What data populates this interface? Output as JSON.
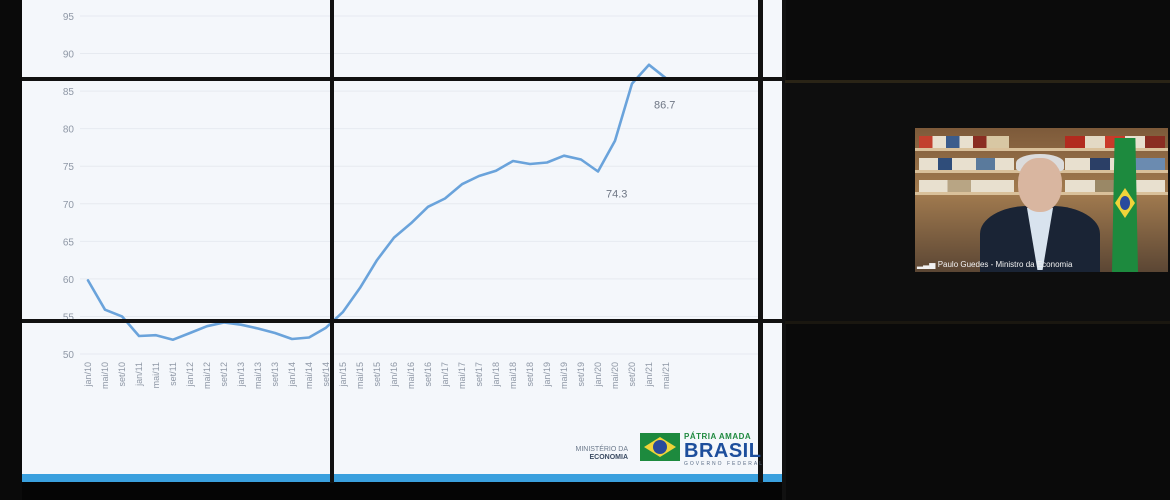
{
  "chart_data": {
    "type": "line",
    "title": "",
    "xlabel": "",
    "ylabel": "",
    "ylim": [
      50,
      95
    ],
    "yticks": [
      50,
      55,
      60,
      65,
      70,
      75,
      80,
      85,
      90,
      95
    ],
    "xticks": [
      "jan/10",
      "mai/10",
      "set/10",
      "jan/11",
      "mai/11",
      "set/11",
      "jan/12",
      "mai/12",
      "set/12",
      "jan/13",
      "mai/13",
      "set/13",
      "jan/14",
      "mai/14",
      "set/14",
      "jan/15",
      "mai/15",
      "set/15",
      "jan/16",
      "mai/16",
      "set/16",
      "jan/17",
      "mai/17",
      "set/17",
      "jan/18",
      "mai/18",
      "set/18",
      "jan/19",
      "mai/19",
      "set/19",
      "jan/20",
      "mai/20",
      "set/20",
      "jan/21",
      "mai/21"
    ],
    "line_color": "#6aa3db",
    "series": [
      {
        "x": [
          "jan/10",
          "mai/10",
          "set/10",
          "jan/11",
          "mai/11",
          "set/11",
          "jan/12",
          "mai/12",
          "set/12",
          "jan/13",
          "mai/13",
          "set/13",
          "jan/14",
          "mai/14",
          "set/14",
          "jan/15",
          "mai/15",
          "set/15",
          "jan/16",
          "mai/16",
          "set/16",
          "jan/17",
          "mai/17",
          "set/17",
          "jan/18",
          "mai/18",
          "set/18",
          "jan/19",
          "mai/19",
          "set/19",
          "jan/20",
          "mai/20",
          "set/20",
          "jan/21",
          "mai/21"
        ],
        "values": [
          59.8,
          55.9,
          55.0,
          52.4,
          52.5,
          51.9,
          52.8,
          53.7,
          54.2,
          53.9,
          53.4,
          52.8,
          52.0,
          52.2,
          53.5,
          55.6,
          58.8,
          62.5,
          65.5,
          67.4,
          69.6,
          70.7,
          72.6,
          73.7,
          74.4,
          75.7,
          75.3,
          75.5,
          76.4,
          75.9,
          74.3,
          78.4,
          86.0,
          88.5,
          86.7
        ]
      }
    ],
    "annotations": [
      {
        "x": "jan/20",
        "y": 74.3,
        "text": "74.3"
      },
      {
        "x": "mai/21",
        "y": 86.7,
        "text": "86.7"
      }
    ]
  },
  "video": {
    "caption": "Paulo Guedes - Ministro da Economia"
  },
  "logo": {
    "ministry_line1": "MINISTÉRIO DA",
    "ministry_line2": "ECONOMIA",
    "top": "PÁTRIA AMADA",
    "main": "BRASIL",
    "sub": "GOVERNO FEDERAL"
  }
}
